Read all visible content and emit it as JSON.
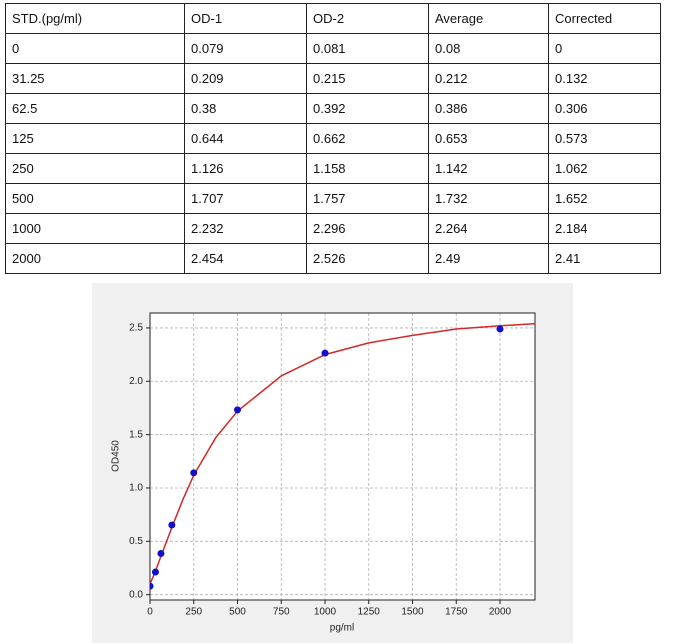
{
  "table": {
    "header": [
      "STD.(pg/ml)",
      "OD-1",
      "OD-2",
      "Average",
      "Corrected"
    ],
    "rows": [
      [
        "0",
        "0.079",
        "0.081",
        "0.08",
        "0"
      ],
      [
        "31.25",
        "0.209",
        "0.215",
        "0.212",
        "0.132"
      ],
      [
        "62.5",
        "0.38",
        "0.392",
        "0.386",
        "0.306"
      ],
      [
        "125",
        "0.644",
        "0.662",
        "0.653",
        "0.573"
      ],
      [
        "250",
        "1.126",
        "1.158",
        "1.142",
        "1.062"
      ],
      [
        "500",
        "1.707",
        "1.757",
        "1.732",
        "1.652"
      ],
      [
        "1000",
        "2.232",
        "2.296",
        "2.264",
        "2.184"
      ],
      [
        "2000",
        "2.454",
        "2.526",
        "2.49",
        "2.41"
      ]
    ]
  },
  "chart_data": {
    "type": "scatter",
    "x_label": "pg/ml",
    "y_label": "OD450",
    "xlim": [
      0,
      2200
    ],
    "ylim": [
      -0.05,
      2.64
    ],
    "xticks": [
      0,
      250,
      500,
      750,
      1000,
      1250,
      1500,
      1750,
      2000
    ],
    "yticks": [
      {
        "value": 0,
        "label": "0.0"
      },
      0.5,
      {
        "value": 1,
        "label": "1.0"
      },
      1.5,
      {
        "value": 2,
        "label": "2.0"
      },
      2.5
    ],
    "grid": true,
    "series": [
      {
        "type": "line",
        "color": "#d62728",
        "x": [
          0,
          31.25,
          62.5,
          125,
          187.5,
          250,
          375,
          500,
          750,
          1000,
          1250,
          1500,
          1750,
          2000,
          2200
        ],
        "values": [
          0.1,
          0.22,
          0.36,
          0.63,
          0.89,
          1.12,
          1.47,
          1.72,
          2.05,
          2.25,
          2.36,
          2.43,
          2.49,
          2.52,
          2.54
        ]
      },
      {
        "type": "scatter",
        "color": "#1010c8",
        "x": [
          0,
          31.25,
          62.5,
          125,
          250,
          500,
          1000,
          2000
        ],
        "values": [
          0.08,
          0.212,
          0.386,
          0.653,
          1.142,
          1.732,
          2.264,
          2.49
        ]
      }
    ]
  }
}
